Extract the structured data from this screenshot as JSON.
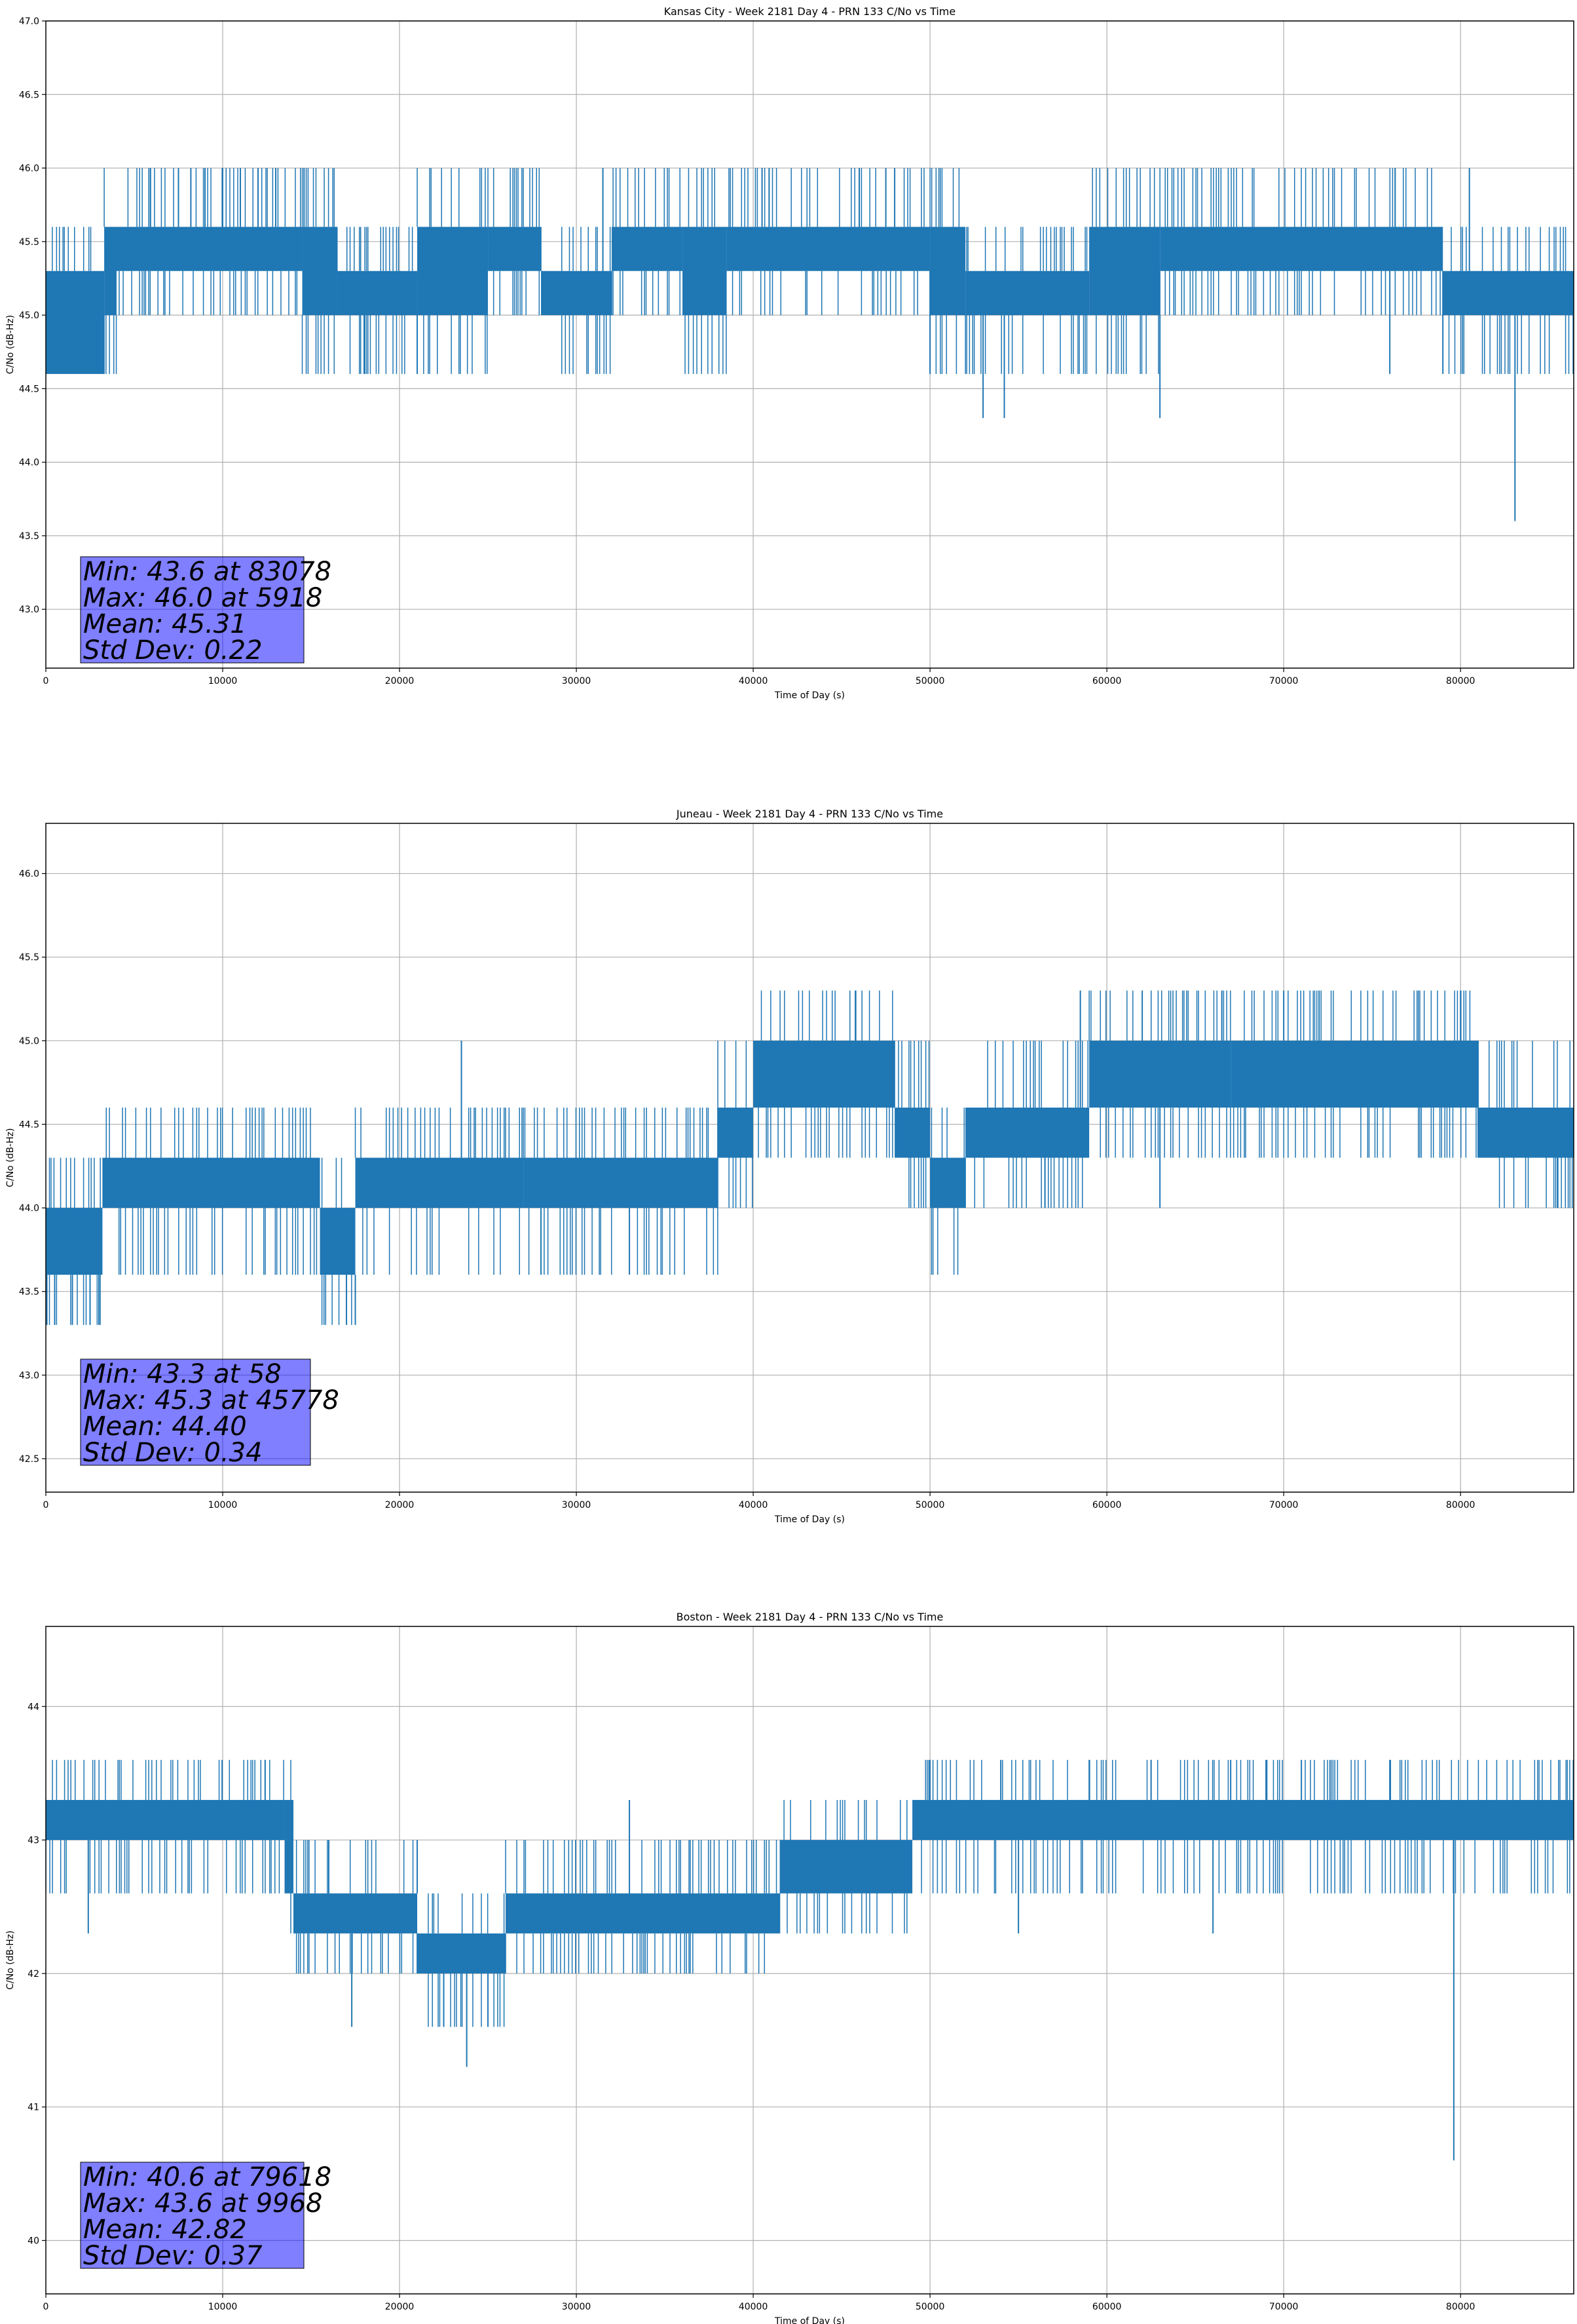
{
  "chart_data": [
    {
      "type": "line",
      "title": "Kansas City - Week 2181 Day 4 - PRN 133 C/No vs Time",
      "xlabel": "Time of Day (s)",
      "ylabel": "C/No (dB-Hz)",
      "xlim": [
        0,
        86400
      ],
      "ylim": [
        42.6,
        47.0
      ],
      "xticks": [
        0,
        10000,
        20000,
        30000,
        40000,
        50000,
        60000,
        70000,
        80000
      ],
      "yticks": [
        "43.0",
        "43.5",
        "44.0",
        "44.5",
        "45.0",
        "45.5",
        "46.0",
        "46.5",
        "47.0"
      ],
      "grid": true,
      "color": "#1f77b4",
      "stats": [
        "Min: 43.6 at 83078",
        "Max: 46.0 at 5918",
        "Mean: 45.31",
        "Std Dev: 0.22"
      ],
      "levels": [
        44.6,
        45.0,
        45.3,
        45.6,
        46.0
      ],
      "segments": [
        {
          "x": [
            0,
            3300
          ],
          "y": [
            44.6,
            45.3
          ]
        },
        {
          "x": [
            3300,
            4000
          ],
          "y": [
            45.0,
            45.6
          ]
        },
        {
          "x": [
            4000,
            14500
          ],
          "y": [
            45.3,
            45.6
          ]
        },
        {
          "x": [
            14500,
            16500
          ],
          "y": [
            45.0,
            45.6
          ]
        },
        {
          "x": [
            16500,
            21000
          ],
          "y": [
            45.0,
            45.3
          ]
        },
        {
          "x": [
            21000,
            25000
          ],
          "y": [
            45.0,
            45.6
          ]
        },
        {
          "x": [
            25000,
            28000
          ],
          "y": [
            45.3,
            45.6
          ]
        },
        {
          "x": [
            28000,
            32000
          ],
          "y": [
            45.0,
            45.3
          ]
        },
        {
          "x": [
            32000,
            36000
          ],
          "y": [
            45.3,
            45.6
          ]
        },
        {
          "x": [
            36000,
            38500
          ],
          "y": [
            45.0,
            45.6
          ]
        },
        {
          "x": [
            38500,
            50000
          ],
          "y": [
            45.3,
            45.6
          ]
        },
        {
          "x": [
            50000,
            52000
          ],
          "y": [
            45.0,
            45.6
          ]
        },
        {
          "x": [
            52000,
            59000
          ],
          "y": [
            45.0,
            45.3
          ]
        },
        {
          "x": [
            59000,
            63000
          ],
          "y": [
            45.0,
            45.6
          ]
        },
        {
          "x": [
            63000,
            79000
          ],
          "y": [
            45.3,
            45.6
          ]
        },
        {
          "x": [
            79000,
            86400
          ],
          "y": [
            45.0,
            45.3
          ]
        }
      ],
      "spikes": [
        {
          "x": 83078,
          "y": 43.6
        },
        {
          "x": 5918,
          "y": 46.0
        },
        {
          "x": 53000,
          "y": 44.3
        },
        {
          "x": 54200,
          "y": 44.3
        },
        {
          "x": 63000,
          "y": 44.3
        },
        {
          "x": 18000,
          "y": 44.6
        },
        {
          "x": 21000,
          "y": 44.6
        },
        {
          "x": 50000,
          "y": 44.6
        },
        {
          "x": 76000,
          "y": 44.6
        },
        {
          "x": 79000,
          "y": 44.6
        },
        {
          "x": 31500,
          "y": 46.0
        },
        {
          "x": 40500,
          "y": 46.0
        },
        {
          "x": 40900,
          "y": 46.0
        },
        {
          "x": 46000,
          "y": 46.0
        },
        {
          "x": 47500,
          "y": 46.0
        },
        {
          "x": 48000,
          "y": 46.0
        },
        {
          "x": 76300,
          "y": 46.0
        },
        {
          "x": 80500,
          "y": 46.0
        },
        {
          "x": 7500,
          "y": 46.0
        },
        {
          "x": 8200,
          "y": 46.0
        },
        {
          "x": 9000,
          "y": 46.0
        },
        {
          "x": 10000,
          "y": 46.0
        },
        {
          "x": 11000,
          "y": 46.0
        },
        {
          "x": 12000,
          "y": 46.0
        },
        {
          "x": 13000,
          "y": 46.0
        },
        {
          "x": 14600,
          "y": 46.0
        }
      ]
    },
    {
      "type": "line",
      "title": "Juneau - Week 2181 Day 4 - PRN 133 C/No vs Time",
      "xlabel": "Time of Day (s)",
      "ylabel": "C/No (dB-Hz)",
      "xlim": [
        0,
        86400
      ],
      "ylim": [
        42.3,
        46.3
      ],
      "xticks": [
        0,
        10000,
        20000,
        30000,
        40000,
        50000,
        60000,
        70000,
        80000
      ],
      "yticks": [
        "42.5",
        "43.0",
        "43.5",
        "44.0",
        "44.5",
        "45.0",
        "45.5",
        "46.0"
      ],
      "grid": true,
      "color": "#1f77b4",
      "stats": [
        "Min: 43.3 at 58",
        "Max: 45.3 at 45778",
        "Mean: 44.40",
        "Std Dev: 0.34"
      ],
      "levels": [
        43.3,
        43.6,
        44.0,
        44.3,
        44.6,
        45.0,
        45.3
      ],
      "segments": [
        {
          "x": [
            0,
            3200
          ],
          "y": [
            43.6,
            44.0
          ]
        },
        {
          "x": [
            3200,
            15500
          ],
          "y": [
            44.0,
            44.3
          ]
        },
        {
          "x": [
            15500,
            17500
          ],
          "y": [
            43.6,
            44.0
          ]
        },
        {
          "x": [
            17500,
            27000
          ],
          "y": [
            44.0,
            44.3
          ]
        },
        {
          "x": [
            27000,
            38000
          ],
          "y": [
            44.0,
            44.3
          ]
        },
        {
          "x": [
            38000,
            40000
          ],
          "y": [
            44.3,
            44.6
          ]
        },
        {
          "x": [
            40000,
            48000
          ],
          "y": [
            44.6,
            45.0
          ]
        },
        {
          "x": [
            48000,
            50000
          ],
          "y": [
            44.3,
            44.6
          ]
        },
        {
          "x": [
            50000,
            52000
          ],
          "y": [
            44.0,
            44.3
          ]
        },
        {
          "x": [
            52000,
            59000
          ],
          "y": [
            44.3,
            44.6
          ]
        },
        {
          "x": [
            59000,
            67000
          ],
          "y": [
            44.6,
            45.0
          ]
        },
        {
          "x": [
            67000,
            81000
          ],
          "y": [
            44.6,
            45.0
          ]
        },
        {
          "x": [
            81000,
            86400
          ],
          "y": [
            44.3,
            44.6
          ]
        }
      ],
      "spikes": [
        {
          "x": 58,
          "y": 43.3
        },
        {
          "x": 500,
          "y": 43.3
        },
        {
          "x": 1500,
          "y": 43.3
        },
        {
          "x": 2500,
          "y": 43.3
        },
        {
          "x": 3000,
          "y": 43.3
        },
        {
          "x": 17000,
          "y": 43.3
        },
        {
          "x": 17500,
          "y": 43.3
        },
        {
          "x": 23500,
          "y": 45.0
        },
        {
          "x": 45778,
          "y": 45.3
        },
        {
          "x": 58500,
          "y": 45.3
        },
        {
          "x": 62000,
          "y": 45.3
        },
        {
          "x": 66500,
          "y": 45.3
        },
        {
          "x": 70000,
          "y": 45.3
        },
        {
          "x": 72000,
          "y": 45.3
        },
        {
          "x": 80000,
          "y": 45.3
        },
        {
          "x": 85500,
          "y": 44.0
        },
        {
          "x": 56500,
          "y": 44.0
        },
        {
          "x": 63000,
          "y": 44.0
        },
        {
          "x": 28000,
          "y": 43.6
        },
        {
          "x": 33000,
          "y": 43.6
        }
      ]
    },
    {
      "type": "line",
      "title": "Boston - Week 2181 Day 4 - PRN 133 C/No vs Time",
      "xlabel": "Time of Day (s)",
      "ylabel": "C/No (dB-Hz)",
      "xlim": [
        0,
        86400
      ],
      "ylim": [
        39.6,
        44.6
      ],
      "xticks": [
        0,
        10000,
        20000,
        30000,
        40000,
        50000,
        60000,
        70000,
        80000
      ],
      "yticks": [
        "40",
        "41",
        "42",
        "43",
        "44"
      ],
      "grid": true,
      "color": "#1f77b4",
      "stats": [
        "Min: 40.6 at 79618",
        "Max: 43.6 at 9968",
        "Mean: 42.82",
        "Std Dev: 0.37"
      ],
      "levels": [
        41.6,
        42.0,
        42.3,
        42.6,
        43.0,
        43.3,
        43.6
      ],
      "segments": [
        {
          "x": [
            0,
            13500
          ],
          "y": [
            43.0,
            43.3
          ]
        },
        {
          "x": [
            13500,
            14000
          ],
          "y": [
            42.6,
            43.3
          ]
        },
        {
          "x": [
            14000,
            21000
          ],
          "y": [
            42.3,
            42.6
          ]
        },
        {
          "x": [
            21000,
            26000
          ],
          "y": [
            42.0,
            42.3
          ]
        },
        {
          "x": [
            26000,
            41500
          ],
          "y": [
            42.3,
            42.6
          ]
        },
        {
          "x": [
            41500,
            49000
          ],
          "y": [
            42.6,
            43.0
          ]
        },
        {
          "x": [
            49000,
            86400
          ],
          "y": [
            43.0,
            43.3
          ]
        }
      ],
      "spikes": [
        {
          "x": 79618,
          "y": 40.6
        },
        {
          "x": 23800,
          "y": 41.3
        },
        {
          "x": 9968,
          "y": 43.6
        },
        {
          "x": 12400,
          "y": 43.6
        },
        {
          "x": 50000,
          "y": 43.6
        },
        {
          "x": 54000,
          "y": 43.6
        },
        {
          "x": 59000,
          "y": 43.6
        },
        {
          "x": 62500,
          "y": 43.6
        },
        {
          "x": 67000,
          "y": 43.6
        },
        {
          "x": 69000,
          "y": 43.6
        },
        {
          "x": 71000,
          "y": 43.6
        },
        {
          "x": 76000,
          "y": 43.6
        },
        {
          "x": 17300,
          "y": 41.6
        },
        {
          "x": 22500,
          "y": 41.6
        },
        {
          "x": 25000,
          "y": 41.6
        },
        {
          "x": 2400,
          "y": 42.3
        },
        {
          "x": 55000,
          "y": 42.3
        },
        {
          "x": 66000,
          "y": 42.3
        },
        {
          "x": 16000,
          "y": 43.0
        },
        {
          "x": 21000,
          "y": 43.0
        },
        {
          "x": 33000,
          "y": 43.3
        }
      ]
    }
  ]
}
